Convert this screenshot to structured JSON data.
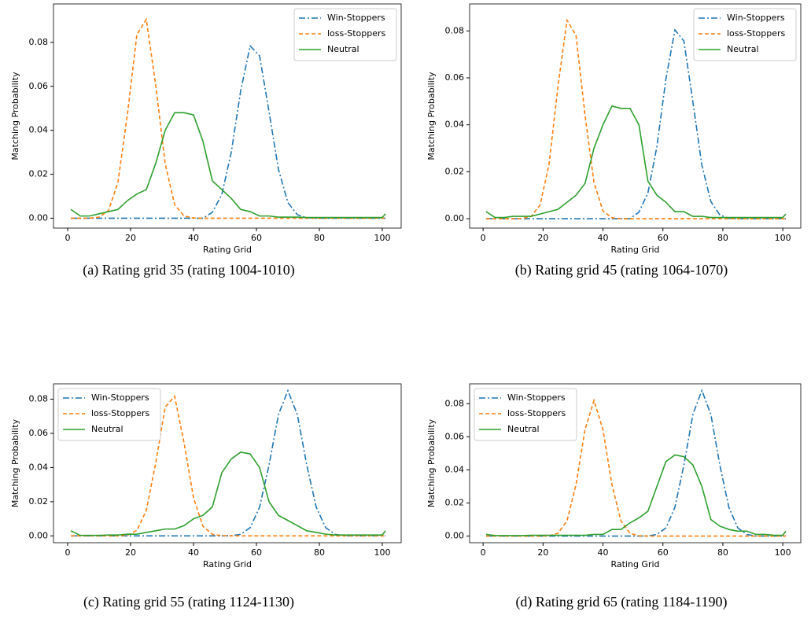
{
  "chart_data": [
    {
      "type": "line",
      "caption": "(a) Rating grid 35 (rating 1004-1010)",
      "xlabel": "Rating Grid",
      "ylabel": "Matching Probability",
      "legend": "upper right",
      "x": [
        1,
        4,
        7,
        10,
        13,
        16,
        19,
        22,
        25,
        28,
        31,
        34,
        37,
        40,
        43,
        46,
        49,
        52,
        55,
        58,
        61,
        64,
        67,
        70,
        73,
        76,
        79,
        82,
        85,
        88,
        91,
        94,
        97,
        100,
        101
      ],
      "xlim": [
        -4.5,
        106
      ],
      "xticks": [
        0,
        20,
        40,
        60,
        80,
        100
      ],
      "ylim": [
        -0.0045,
        0.0975
      ],
      "yticks": [
        {
          "value": 0,
          "label": "0.00"
        },
        0.02,
        0.04,
        0.06,
        0.08
      ],
      "series": [
        {
          "name": "Win-Stoppers",
          "color": "#1f77b4",
          "linestyle": "dashdot",
          "values": [
            0,
            0,
            0,
            0,
            0,
            0,
            0,
            0,
            0,
            0,
            0,
            0,
            0,
            0,
            0,
            0.0027,
            0.0108,
            0.03,
            0.058,
            0.0784,
            0.0739,
            0.0485,
            0.0222,
            0.0071,
            0.0016,
            0.0002,
            0,
            0,
            0,
            0,
            0,
            0,
            0,
            0,
            0
          ]
        },
        {
          "name": "loss-Stoppers",
          "color": "#ff7f0e",
          "linestyle": "dashed",
          "values": [
            0,
            0,
            0,
            0.0005,
            0.0035,
            0.0165,
            0.0473,
            0.0835,
            0.0905,
            0.0604,
            0.0248,
            0.0062,
            0.001,
            0.0001,
            0,
            0,
            0,
            0,
            0,
            0,
            0,
            0,
            0,
            0,
            0,
            0,
            0,
            0,
            0,
            0,
            0,
            0,
            0,
            0,
            0
          ]
        },
        {
          "name": "Neutral",
          "color": "#2ca02c",
          "linestyle": "solid",
          "values": [
            0.004,
            0.001,
            0.001,
            0.002,
            0.003,
            0.004,
            0.008,
            0.011,
            0.013,
            0.025,
            0.04,
            0.048,
            0.048,
            0.047,
            0.035,
            0.017,
            0.013,
            0.009,
            0.004,
            0.003,
            0.001,
            0.001,
            0.0005,
            0.0005,
            0.0005,
            0.0003,
            0.0003,
            0.0003,
            0.0003,
            0.0003,
            0.0003,
            0.0003,
            0.0003,
            0.0003,
            0.002
          ]
        }
      ]
    },
    {
      "type": "line",
      "caption": "(b) Rating grid 45 (rating 1064-1070)",
      "xlabel": "Rating Grid",
      "ylabel": "Matching Probability",
      "legend": "upper right",
      "x": [
        1,
        4,
        7,
        10,
        13,
        16,
        19,
        22,
        25,
        28,
        31,
        34,
        37,
        40,
        43,
        46,
        49,
        52,
        55,
        58,
        61,
        64,
        67,
        70,
        73,
        76,
        79,
        82,
        85,
        88,
        91,
        94,
        97,
        100,
        101
      ],
      "xlim": [
        -4.5,
        106
      ],
      "xticks": [
        0,
        20,
        40,
        60,
        80,
        100
      ],
      "ylim": [
        -0.004,
        0.0915
      ],
      "yticks": [
        {
          "value": 0,
          "label": "0.00"
        },
        0.02,
        0.04,
        0.06,
        0.08
      ],
      "series": [
        {
          "name": "Win-Stoppers",
          "color": "#1f77b4",
          "linestyle": "dashdot",
          "values": [
            0,
            0,
            0,
            0,
            0,
            0,
            0,
            0,
            0,
            0,
            0,
            0,
            0,
            0,
            0,
            0,
            0,
            0.0028,
            0.011,
            0.0308,
            0.0595,
            0.0804,
            0.0757,
            0.0498,
            0.0228,
            0.0073,
            0.0016,
            0.0002,
            0,
            0,
            0,
            0,
            0,
            0,
            0
          ]
        },
        {
          "name": "loss-Stoppers",
          "color": "#ff7f0e",
          "linestyle": "dashed",
          "values": [
            0,
            0,
            0,
            0,
            0.0001,
            0.0009,
            0.0058,
            0.0231,
            0.0565,
            0.0846,
            0.0781,
            0.0443,
            0.0154,
            0.0033,
            0.0004,
            0,
            0,
            0,
            0,
            0,
            0,
            0,
            0,
            0,
            0,
            0,
            0,
            0,
            0,
            0,
            0,
            0,
            0,
            0,
            0
          ]
        },
        {
          "name": "Neutral",
          "color": "#2ca02c",
          "linestyle": "solid",
          "values": [
            0.003,
            0.0005,
            0.0005,
            0.001,
            0.001,
            0.001,
            0.002,
            0.003,
            0.004,
            0.007,
            0.01,
            0.015,
            0.03,
            0.04,
            0.048,
            0.047,
            0.047,
            0.04,
            0.016,
            0.01,
            0.007,
            0.003,
            0.003,
            0.001,
            0.001,
            0.0005,
            0.0005,
            0.0005,
            0.0005,
            0.0005,
            0.0005,
            0.0005,
            0.0005,
            0.0005,
            0.002
          ]
        }
      ]
    },
    {
      "type": "line",
      "caption": "(c) Rating grid 55 (rating 1124-1130)",
      "xlabel": "Rating Grid",
      "ylabel": "Matching Probability",
      "legend": "upper left",
      "x": [
        1,
        4,
        7,
        10,
        13,
        16,
        19,
        22,
        25,
        28,
        31,
        34,
        37,
        40,
        43,
        46,
        49,
        52,
        55,
        58,
        61,
        64,
        67,
        70,
        73,
        76,
        79,
        82,
        85,
        88,
        91,
        94,
        97,
        100,
        101
      ],
      "xlim": [
        -4.5,
        106
      ],
      "xticks": [
        0,
        20,
        40,
        60,
        80,
        100
      ],
      "ylim": [
        -0.004,
        0.089
      ],
      "yticks": [
        {
          "value": 0,
          "label": "0.00"
        },
        0.02,
        0.04,
        0.06,
        0.08
      ],
      "series": [
        {
          "name": "Win-Stoppers",
          "color": "#1f77b4",
          "linestyle": "dashdot",
          "values": [
            0,
            0,
            0,
            0,
            0,
            0,
            0,
            0,
            0,
            0,
            0,
            0,
            0,
            0,
            0,
            0,
            0,
            0.0001,
            0.0009,
            0.0048,
            0.0168,
            0.0414,
            0.071,
            0.085,
            0.071,
            0.0414,
            0.0168,
            0.0048,
            0.0009,
            0,
            0,
            0,
            0,
            0,
            0
          ]
        },
        {
          "name": "loss-Stoppers",
          "color": "#ff7f0e",
          "linestyle": "dashed",
          "values": [
            0,
            0,
            0,
            0,
            0,
            0,
            0.0004,
            0.0032,
            0.0149,
            0.0428,
            0.0754,
            0.0817,
            0.0545,
            0.0223,
            0.0056,
            0.0009,
            0.0001,
            0,
            0,
            0,
            0,
            0,
            0,
            0,
            0,
            0,
            0,
            0,
            0,
            0,
            0,
            0,
            0,
            0,
            0
          ]
        },
        {
          "name": "Neutral",
          "color": "#2ca02c",
          "linestyle": "solid",
          "values": [
            0.003,
            0.0003,
            0.0003,
            0.0003,
            0.0005,
            0.0005,
            0.001,
            0.001,
            0.002,
            0.003,
            0.004,
            0.004,
            0.006,
            0.01,
            0.012,
            0.017,
            0.037,
            0.045,
            0.049,
            0.048,
            0.04,
            0.02,
            0.012,
            0.009,
            0.006,
            0.003,
            0.002,
            0.001,
            0.0005,
            0.0005,
            0.0005,
            0.0005,
            0.0005,
            0.0005,
            0.003
          ]
        }
      ]
    },
    {
      "type": "line",
      "caption": "(d) Rating grid 65 (rating 1184-1190)",
      "xlabel": "Rating Grid",
      "ylabel": "Matching Probability",
      "legend": "upper left",
      "x": [
        1,
        4,
        7,
        10,
        13,
        16,
        19,
        22,
        25,
        28,
        31,
        34,
        37,
        40,
        43,
        46,
        49,
        52,
        55,
        58,
        61,
        64,
        67,
        70,
        73,
        76,
        79,
        82,
        85,
        88,
        91,
        94,
        97,
        100,
        101
      ],
      "xlim": [
        -4.5,
        106
      ],
      "xticks": [
        0,
        20,
        40,
        60,
        80,
        100
      ],
      "ylim": [
        -0.004,
        0.092
      ],
      "yticks": [
        {
          "value": 0,
          "label": "0.00"
        },
        0.02,
        0.04,
        0.06,
        0.08
      ],
      "series": [
        {
          "name": "Win-Stoppers",
          "color": "#1f77b4",
          "linestyle": "dashdot",
          "values": [
            0,
            0,
            0,
            0,
            0,
            0,
            0,
            0,
            0,
            0,
            0,
            0,
            0,
            0,
            0,
            0,
            0,
            0,
            0.0001,
            0.001,
            0.0049,
            0.0174,
            0.0429,
            0.0735,
            0.088,
            0.0735,
            0.0429,
            0.0174,
            0.0049,
            0.001,
            0,
            0,
            0,
            0,
            0
          ]
        },
        {
          "name": "loss-Stoppers",
          "color": "#ff7f0e",
          "linestyle": "dashed",
          "values": [
            0,
            0,
            0,
            0,
            0,
            0,
            0,
            0.0002,
            0.0017,
            0.0092,
            0.031,
            0.0643,
            0.082,
            0.0643,
            0.031,
            0.0092,
            0.0017,
            0.0002,
            0,
            0,
            0,
            0,
            0,
            0,
            0,
            0,
            0,
            0,
            0,
            0,
            0,
            0,
            0,
            0,
            0
          ]
        },
        {
          "name": "Neutral",
          "color": "#2ca02c",
          "linestyle": "solid",
          "values": [
            0.001,
            0.0003,
            0.0003,
            0.0003,
            0.0003,
            0.0005,
            0.0005,
            0.0005,
            0.0005,
            0.0005,
            0.0005,
            0.0005,
            0.001,
            0.001,
            0.004,
            0.004,
            0.008,
            0.011,
            0.015,
            0.03,
            0.045,
            0.049,
            0.048,
            0.043,
            0.03,
            0.01,
            0.006,
            0.004,
            0.003,
            0.003,
            0.001,
            0.001,
            0.0005,
            0.0005,
            0.003
          ]
        }
      ]
    }
  ]
}
